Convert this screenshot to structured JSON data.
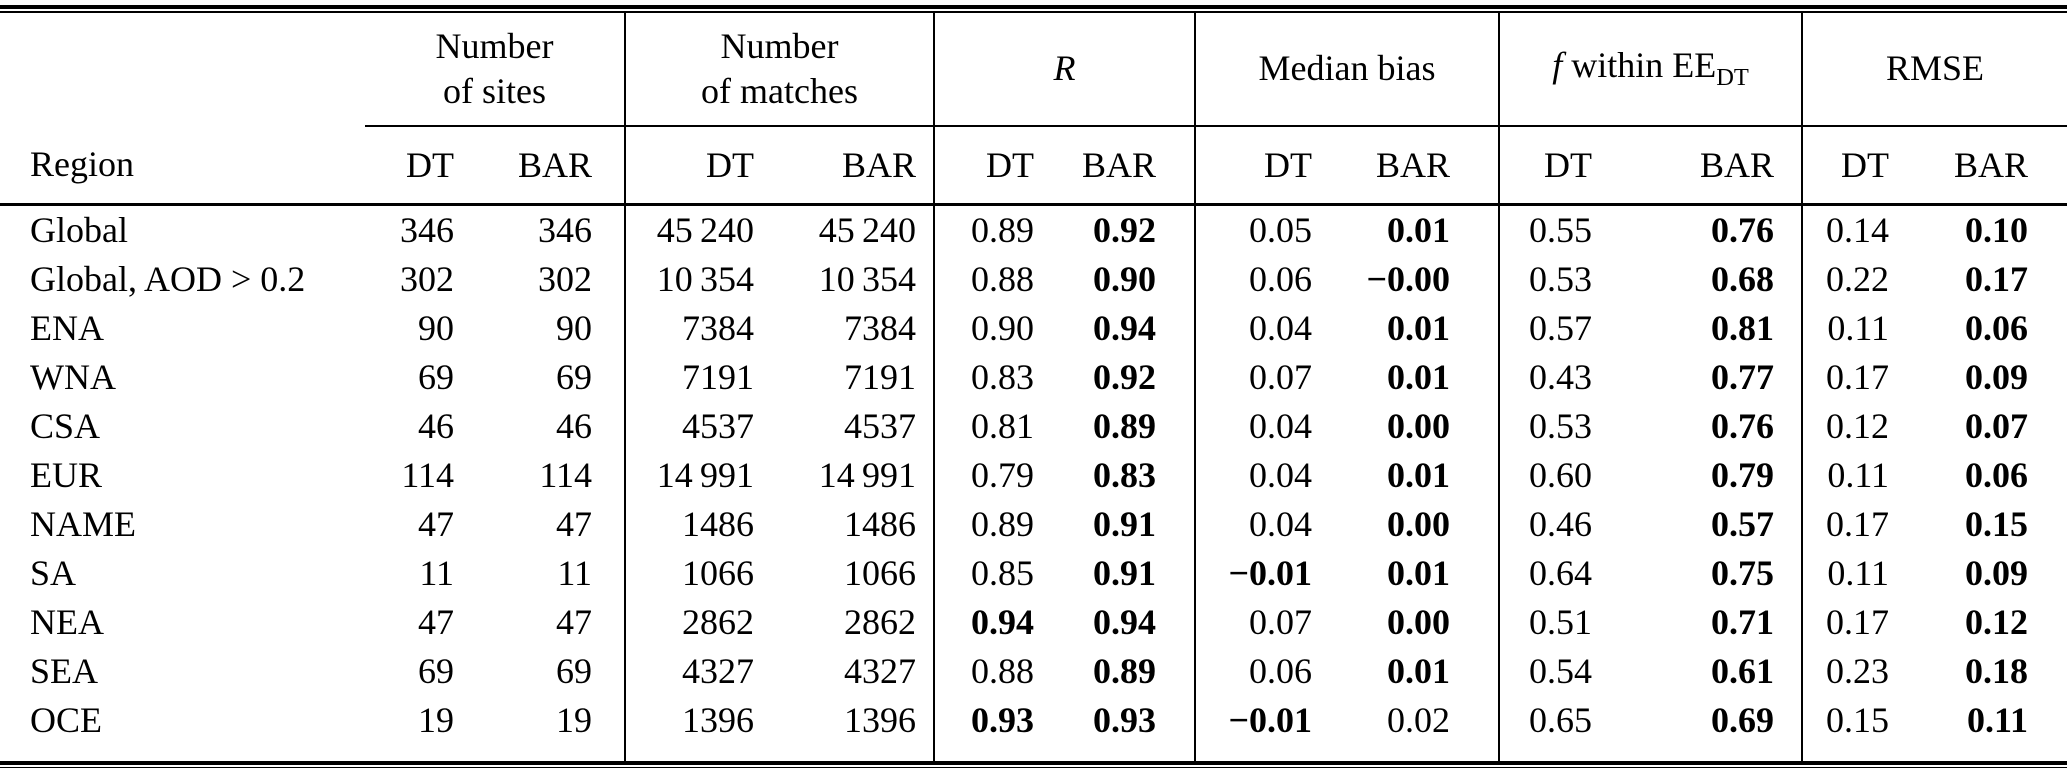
{
  "table": {
    "region_header": "Region",
    "sub_header_dt": "DT",
    "sub_header_bar": "BAR",
    "groups": [
      {
        "line1": "Number",
        "line2": "of sites"
      },
      {
        "line1": "Number",
        "line2": "of matches"
      },
      {
        "label_italic": "R"
      },
      {
        "label": "Median bias"
      },
      {
        "f_italic": "f",
        "mid": " within EE",
        "sub": "DT"
      },
      {
        "label": "RMSE"
      }
    ],
    "rows": [
      {
        "region": "Global",
        "cells": [
          {
            "t": "346"
          },
          {
            "t": "346"
          },
          {
            "t": "45 240"
          },
          {
            "t": "45 240"
          },
          {
            "t": "0.89"
          },
          {
            "t": "0.92",
            "b": true
          },
          {
            "t": "0.05"
          },
          {
            "t": "0.01",
            "b": true
          },
          {
            "t": "0.55"
          },
          {
            "t": "0.76",
            "b": true
          },
          {
            "t": "0.14"
          },
          {
            "t": "0.10",
            "b": true
          }
        ]
      },
      {
        "region": "Global, AOD > 0.2",
        "cells": [
          {
            "t": "302"
          },
          {
            "t": "302"
          },
          {
            "t": "10 354"
          },
          {
            "t": "10 354"
          },
          {
            "t": "0.88"
          },
          {
            "t": "0.90",
            "b": true
          },
          {
            "t": "0.06"
          },
          {
            "t": "−0.00",
            "b": true
          },
          {
            "t": "0.53"
          },
          {
            "t": "0.68",
            "b": true
          },
          {
            "t": "0.22"
          },
          {
            "t": "0.17",
            "b": true
          }
        ]
      },
      {
        "region": "ENA",
        "cells": [
          {
            "t": "90"
          },
          {
            "t": "90"
          },
          {
            "t": "7384"
          },
          {
            "t": "7384"
          },
          {
            "t": "0.90"
          },
          {
            "t": "0.94",
            "b": true
          },
          {
            "t": "0.04"
          },
          {
            "t": "0.01",
            "b": true
          },
          {
            "t": "0.57"
          },
          {
            "t": "0.81",
            "b": true
          },
          {
            "t": "0.11"
          },
          {
            "t": "0.06",
            "b": true
          }
        ]
      },
      {
        "region": "WNA",
        "cells": [
          {
            "t": "69"
          },
          {
            "t": "69"
          },
          {
            "t": "7191"
          },
          {
            "t": "7191"
          },
          {
            "t": "0.83"
          },
          {
            "t": "0.92",
            "b": true
          },
          {
            "t": "0.07"
          },
          {
            "t": "0.01",
            "b": true
          },
          {
            "t": "0.43"
          },
          {
            "t": "0.77",
            "b": true
          },
          {
            "t": "0.17"
          },
          {
            "t": "0.09",
            "b": true
          }
        ]
      },
      {
        "region": "CSA",
        "cells": [
          {
            "t": "46"
          },
          {
            "t": "46"
          },
          {
            "t": "4537"
          },
          {
            "t": "4537"
          },
          {
            "t": "0.81"
          },
          {
            "t": "0.89",
            "b": true
          },
          {
            "t": "0.04"
          },
          {
            "t": "0.00",
            "b": true
          },
          {
            "t": "0.53"
          },
          {
            "t": "0.76",
            "b": true
          },
          {
            "t": "0.12"
          },
          {
            "t": "0.07",
            "b": true
          }
        ]
      },
      {
        "region": "EUR",
        "cells": [
          {
            "t": "114"
          },
          {
            "t": "114"
          },
          {
            "t": "14 991"
          },
          {
            "t": "14 991"
          },
          {
            "t": "0.79"
          },
          {
            "t": "0.83",
            "b": true
          },
          {
            "t": "0.04"
          },
          {
            "t": "0.01",
            "b": true
          },
          {
            "t": "0.60"
          },
          {
            "t": "0.79",
            "b": true
          },
          {
            "t": "0.11"
          },
          {
            "t": "0.06",
            "b": true
          }
        ]
      },
      {
        "region": "NAME",
        "cells": [
          {
            "t": "47"
          },
          {
            "t": "47"
          },
          {
            "t": "1486"
          },
          {
            "t": "1486"
          },
          {
            "t": "0.89"
          },
          {
            "t": "0.91",
            "b": true
          },
          {
            "t": "0.04"
          },
          {
            "t": "0.00",
            "b": true
          },
          {
            "t": "0.46"
          },
          {
            "t": "0.57",
            "b": true
          },
          {
            "t": "0.17"
          },
          {
            "t": "0.15",
            "b": true
          }
        ]
      },
      {
        "region": "SA",
        "cells": [
          {
            "t": "11"
          },
          {
            "t": "11"
          },
          {
            "t": "1066"
          },
          {
            "t": "1066"
          },
          {
            "t": "0.85"
          },
          {
            "t": "0.91",
            "b": true
          },
          {
            "t": "−0.01",
            "b": true
          },
          {
            "t": "0.01",
            "b": true
          },
          {
            "t": "0.64"
          },
          {
            "t": "0.75",
            "b": true
          },
          {
            "t": "0.11"
          },
          {
            "t": "0.09",
            "b": true
          }
        ]
      },
      {
        "region": "NEA",
        "cells": [
          {
            "t": "47"
          },
          {
            "t": "47"
          },
          {
            "t": "2862"
          },
          {
            "t": "2862"
          },
          {
            "t": "0.94",
            "b": true
          },
          {
            "t": "0.94",
            "b": true
          },
          {
            "t": "0.07"
          },
          {
            "t": "0.00",
            "b": true
          },
          {
            "t": "0.51"
          },
          {
            "t": "0.71",
            "b": true
          },
          {
            "t": "0.17"
          },
          {
            "t": "0.12",
            "b": true
          }
        ]
      },
      {
        "region": "SEA",
        "cells": [
          {
            "t": "69"
          },
          {
            "t": "69"
          },
          {
            "t": "4327"
          },
          {
            "t": "4327"
          },
          {
            "t": "0.88"
          },
          {
            "t": "0.89",
            "b": true
          },
          {
            "t": "0.06"
          },
          {
            "t": "0.01",
            "b": true
          },
          {
            "t": "0.54"
          },
          {
            "t": "0.61",
            "b": true
          },
          {
            "t": "0.23"
          },
          {
            "t": "0.18",
            "b": true
          }
        ]
      },
      {
        "region": "OCE",
        "cells": [
          {
            "t": "19"
          },
          {
            "t": "19"
          },
          {
            "t": "1396"
          },
          {
            "t": "1396"
          },
          {
            "t": "0.93",
            "b": true
          },
          {
            "t": "0.93",
            "b": true
          },
          {
            "t": "−0.01",
            "b": true
          },
          {
            "t": "0.02"
          },
          {
            "t": "0.65"
          },
          {
            "t": "0.69",
            "b": true
          },
          {
            "t": "0.15"
          },
          {
            "t": "0.11",
            "b": true
          }
        ]
      }
    ]
  }
}
